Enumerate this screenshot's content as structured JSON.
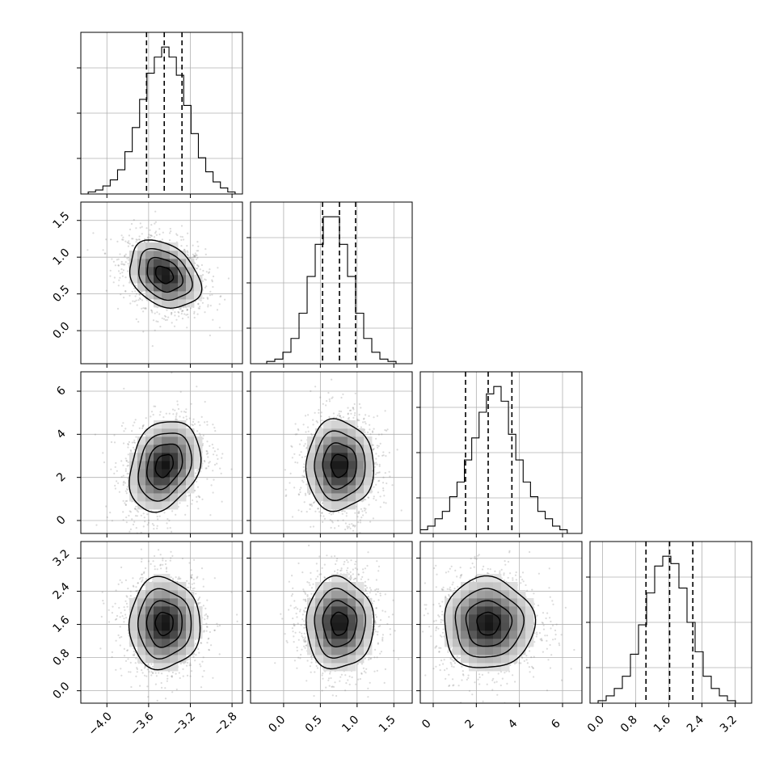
{
  "chart_data": {
    "type": "corner",
    "parameters": [
      {
        "range": [
          -4.25,
          -2.7
        ],
        "ticks": [
          -4.0,
          -3.6,
          -3.2,
          -2.8
        ],
        "tick_labels": [
          "−4.0",
          "−3.6",
          "−3.2",
          "−2.8"
        ],
        "quantiles": [
          -3.62,
          -3.45,
          -3.28
        ],
        "mean": -3.45,
        "std": 0.17,
        "hist_counts": [
          0,
          1,
          2,
          4,
          7,
          12,
          21,
          33,
          47,
          60,
          68,
          73,
          68,
          59,
          44,
          30,
          18,
          11,
          6,
          3,
          1,
          0
        ]
      },
      {
        "range": [
          -0.45,
          1.75
        ],
        "ticks": [
          0.0,
          0.5,
          1.0,
          1.5
        ],
        "tick_labels": [
          "0.0",
          "0.5",
          "1.0",
          "1.5"
        ],
        "quantiles": [
          0.53,
          0.76,
          0.98
        ],
        "mean": 0.76,
        "std": 0.23,
        "hist_counts": [
          0,
          0,
          1,
          2,
          5,
          11,
          22,
          38,
          52,
          64,
          64,
          52,
          38,
          22,
          11,
          5,
          2,
          1,
          0,
          0
        ]
      },
      {
        "range": [
          -0.6,
          6.9
        ],
        "ticks": [
          0,
          2,
          4,
          6
        ],
        "tick_labels": [
          "0",
          "2",
          "4",
          "6"
        ],
        "quantiles": [
          1.5,
          2.55,
          3.65
        ],
        "mean": 2.55,
        "std": 1.05,
        "hist_counts": [
          1,
          2,
          4,
          6,
          10,
          14,
          20,
          26,
          33,
          38,
          40,
          36,
          27,
          20,
          14,
          10,
          6,
          4,
          2,
          1,
          0,
          0
        ]
      },
      {
        "range": [
          -0.3,
          3.6
        ],
        "ticks": [
          0.0,
          0.8,
          1.6,
          2.4,
          3.2
        ],
        "tick_labels": [
          "0.0",
          "0.8",
          "1.6",
          "2.4",
          "3.2"
        ],
        "quantiles": [
          1.05,
          1.62,
          2.18
        ],
        "mean": 1.62,
        "std": 0.55,
        "hist_counts": [
          0,
          1,
          3,
          6,
          11,
          20,
          32,
          45,
          56,
          60,
          57,
          47,
          33,
          21,
          11,
          6,
          3,
          1,
          0,
          0
        ]
      }
    ],
    "correlations": [
      [
        1,
        0
      ],
      [
        2,
        0
      ],
      [
        2,
        1
      ],
      [
        3,
        0
      ],
      [
        3,
        1
      ],
      [
        3,
        2
      ]
    ],
    "correlation_values": [
      -0.3,
      0.25,
      0.0,
      0.0,
      0.0,
      0.0
    ],
    "contour_levels_sigma": [
      0.5,
      1.0,
      1.5,
      2.0
    ],
    "grid": true,
    "scatter_color": "#7f7f7f",
    "line_color": "#000000"
  }
}
